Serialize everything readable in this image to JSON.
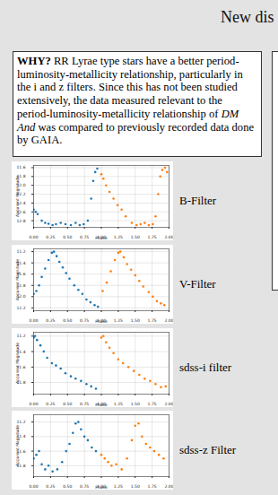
{
  "header": {
    "title": "New dis"
  },
  "why_box": {
    "segments": [
      {
        "text": "WHY?",
        "style": "bold"
      },
      {
        "text": " RR Lyrae type stars have a better period-luminosity-metallicity relationship, particularly in the i and z filters. Since this has not been studied extensively, the data measured relevant to the period-luminosity-metallicity relationship of "
      },
      {
        "text": "DM And",
        "style": "italic"
      },
      {
        "text": " was compared to previously recorded data done by GAIA."
      }
    ]
  },
  "chart_data": [
    {
      "type": "scatter",
      "title": "B-Filter",
      "x_label": "Phase",
      "y_label": "Apparent Magnitude",
      "grid": true,
      "marker": "circle",
      "xlim": [
        0,
        2
      ],
      "xticks": [
        {
          "value": 0,
          "label": "0.00"
        },
        {
          "value": 0.25,
          "label": "0.25"
        },
        {
          "value": 0.5,
          "label": "0.50"
        },
        {
          "value": 0.75,
          "label": "0.75"
        },
        {
          "value": 1,
          "label": "1.00"
        },
        {
          "value": 1.25,
          "label": "1.25"
        },
        {
          "value": 1.5,
          "label": "1.50"
        },
        {
          "value": 1.75,
          "label": "1.75"
        },
        {
          "value": 2,
          "label": "2.00"
        }
      ],
      "ylim": [
        12.95,
        11.55
      ],
      "yticks": [
        11.6,
        11.8,
        {
          "value": 12,
          "label": "12.0"
        },
        12.2,
        12.4,
        12.6,
        12.8
      ],
      "series": [
        {
          "color": "#1f77b4",
          "x": [
            0.0,
            0.03,
            0.06,
            0.12,
            0.17,
            0.22,
            0.28,
            0.33,
            0.4,
            0.47,
            0.55,
            0.62,
            0.68,
            0.74,
            0.8,
            0.85,
            0.88,
            0.91,
            0.94
          ],
          "values": [
            12.55,
            12.6,
            12.65,
            12.8,
            12.85,
            12.87,
            12.9,
            12.88,
            12.85,
            12.88,
            12.9,
            12.85,
            12.9,
            12.88,
            12.8,
            12.3,
            11.9,
            11.7,
            11.62
          ]
        },
        {
          "color": "#ff7f0e",
          "x": [
            1.0,
            1.03,
            1.07,
            1.12,
            1.18,
            1.24,
            1.3,
            1.36,
            1.45,
            1.52,
            1.58,
            1.64,
            1.7,
            1.76,
            1.8,
            1.84,
            1.87,
            1.9,
            1.94,
            1.97
          ],
          "values": [
            11.75,
            11.85,
            12.0,
            12.15,
            12.3,
            12.45,
            12.55,
            12.7,
            12.85,
            12.9,
            12.88,
            12.85,
            12.9,
            12.88,
            12.7,
            12.2,
            11.8,
            11.65,
            11.6,
            11.7
          ]
        }
      ]
    },
    {
      "type": "scatter",
      "title": "V-Filter",
      "x_label": "Phase",
      "y_label": "Apparent Magnitude",
      "grid": true,
      "marker": "circle",
      "xlim": [
        0,
        2
      ],
      "xticks": [
        {
          "value": 0,
          "label": "0.00"
        },
        {
          "value": 0.25,
          "label": "0.25"
        },
        {
          "value": 0.5,
          "label": "0.50"
        },
        {
          "value": 0.75,
          "label": "0.75"
        },
        {
          "value": 1,
          "label": "1.00"
        },
        {
          "value": 1.25,
          "label": "1.25"
        },
        {
          "value": 1.5,
          "label": "1.50"
        },
        {
          "value": 1.75,
          "label": "1.75"
        },
        {
          "value": 2,
          "label": "2.00"
        }
      ],
      "ylim": [
        12.25,
        11.15
      ],
      "yticks": [
        11.2,
        11.4,
        11.6,
        11.8,
        {
          "value": 12,
          "label": "12.0"
        },
        12.2
      ],
      "series": [
        {
          "color": "#1f77b4",
          "x": [
            0.0,
            0.04,
            0.08,
            0.12,
            0.17,
            0.22,
            0.27,
            0.3,
            0.34,
            0.38,
            0.43,
            0.48,
            0.53,
            0.6,
            0.66,
            0.72,
            0.78,
            0.84,
            0.9,
            0.95
          ],
          "values": [
            11.95,
            11.9,
            11.8,
            11.65,
            11.5,
            11.35,
            11.22,
            11.2,
            11.28,
            11.38,
            11.48,
            11.58,
            11.68,
            11.8,
            11.88,
            11.95,
            12.05,
            12.1,
            12.15,
            12.18
          ]
        },
        {
          "color": "#ff7f0e",
          "x": [
            1.02,
            1.08,
            1.14,
            1.2,
            1.25,
            1.28,
            1.33,
            1.38,
            1.44,
            1.5,
            1.56,
            1.62,
            1.7,
            1.76,
            1.82,
            1.88,
            1.93
          ],
          "values": [
            11.9,
            11.75,
            11.55,
            11.35,
            11.22,
            11.2,
            11.3,
            11.42,
            11.52,
            11.62,
            11.72,
            11.82,
            11.92,
            12.0,
            12.08,
            12.12,
            12.15
          ]
        }
      ]
    },
    {
      "type": "scatter",
      "title": "sdss-i filter",
      "x_label": "Phase",
      "y_label": "Apparent Magnitude",
      "grid": true,
      "marker": "circle",
      "xlim": [
        0,
        2
      ],
      "xticks": [
        {
          "value": 0,
          "label": "0.00"
        },
        {
          "value": 0.25,
          "label": "0.25"
        },
        {
          "value": 0.5,
          "label": "0.50"
        },
        {
          "value": 0.75,
          "label": "0.75"
        },
        {
          "value": 1,
          "label": "1.00"
        },
        {
          "value": 1.25,
          "label": "1.25"
        },
        {
          "value": 1.5,
          "label": "1.50"
        },
        {
          "value": 1.75,
          "label": "1.75"
        },
        {
          "value": 2,
          "label": "2.00"
        }
      ],
      "ylim": [
        11.95,
        11.15
      ],
      "yticks": [
        11.2,
        11.4,
        11.6,
        11.8
      ],
      "series": [
        {
          "color": "#1f77b4",
          "x": [
            0.0,
            0.02,
            0.05,
            0.1,
            0.15,
            0.2,
            0.27,
            0.33,
            0.4,
            0.47,
            0.55,
            0.62,
            0.7,
            0.78,
            0.85,
            0.92
          ],
          "values": [
            11.22,
            11.2,
            11.25,
            11.32,
            11.4,
            11.48,
            11.55,
            11.58,
            11.62,
            11.68,
            11.72,
            11.75,
            11.78,
            11.82,
            11.85,
            11.88
          ]
        },
        {
          "color": "#ff7f0e",
          "x": [
            1.0,
            1.03,
            1.07,
            1.12,
            1.18,
            1.25,
            1.32,
            1.4,
            1.48,
            1.56,
            1.64,
            1.72,
            1.8,
            1.88,
            1.95
          ],
          "values": [
            11.22,
            11.2,
            11.28,
            11.35,
            11.42,
            11.5,
            11.55,
            11.6,
            11.65,
            11.7,
            11.75,
            11.78,
            11.82,
            11.86,
            11.85
          ]
        }
      ]
    },
    {
      "type": "scatter",
      "title": "sdss-z Filter",
      "x_label": "Phase",
      "y_label": "Apparent Magnitude",
      "grid": true,
      "marker": "circle",
      "xlim": [
        0,
        2
      ],
      "xticks": [
        {
          "value": 0,
          "label": "0.00"
        },
        {
          "value": 0.25,
          "label": "0.25"
        },
        {
          "value": 0.5,
          "label": "0.50"
        },
        {
          "value": 0.75,
          "label": "0.75"
        },
        {
          "value": 1,
          "label": "1.00"
        },
        {
          "value": 1.25,
          "label": "1.25"
        },
        {
          "value": 1.5,
          "label": "1.50"
        },
        {
          "value": 1.75,
          "label": "1.75"
        },
        {
          "value": 2,
          "label": "2.00"
        }
      ],
      "ylim": [
        11.95,
        11.1
      ],
      "yticks": [
        11.2,
        11.4,
        11.6,
        11.8
      ],
      "series": [
        {
          "color": "#1f77b4",
          "x": [
            0.0,
            0.04,
            0.08,
            0.12,
            0.17,
            0.22,
            0.28,
            0.35,
            0.42,
            0.48,
            0.53,
            0.58,
            0.62,
            0.66,
            0.7,
            0.75,
            0.8,
            0.86,
            0.92
          ],
          "values": [
            11.7,
            11.65,
            11.6,
            11.78,
            11.85,
            11.8,
            11.88,
            11.85,
            11.75,
            11.6,
            11.5,
            11.35,
            11.22,
            11.2,
            11.3,
            11.4,
            11.45,
            11.55,
            11.6
          ]
        },
        {
          "color": "#ff7f0e",
          "x": [
            1.0,
            1.05,
            1.1,
            1.15,
            1.22,
            1.3,
            1.38,
            1.45,
            1.5,
            1.55,
            1.6,
            1.66,
            1.72,
            1.78,
            1.85,
            1.92
          ],
          "values": [
            11.65,
            11.7,
            11.75,
            11.8,
            11.78,
            11.85,
            11.7,
            11.45,
            11.25,
            11.22,
            11.4,
            11.5,
            11.55,
            11.6,
            11.65,
            11.7
          ]
        }
      ]
    }
  ]
}
